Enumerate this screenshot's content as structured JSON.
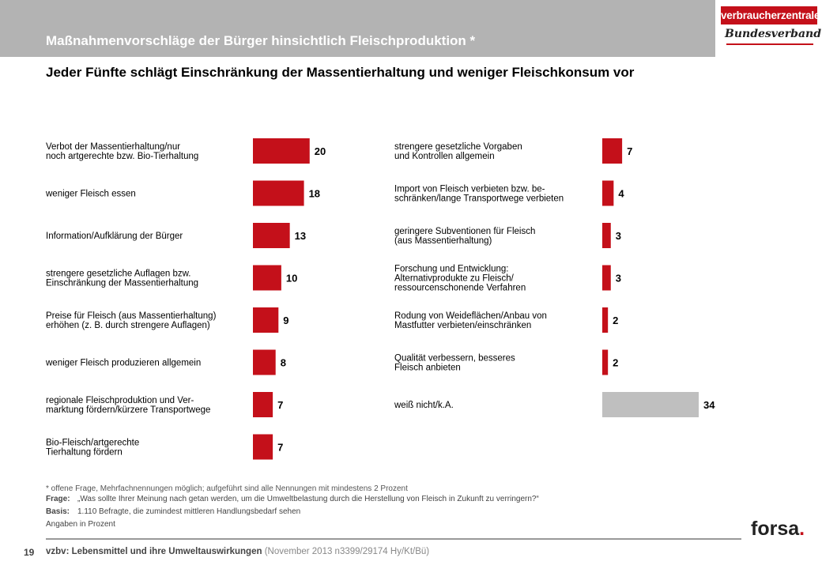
{
  "header": {
    "title": "Maßnahmenvorschläge der Bürger hinsichtlich Fleischproduktion *",
    "subtitle": "Jeder Fünfte schlägt Einschränkung der Massentierhaltung und weniger Fleischkonsum vor"
  },
  "logo": {
    "brand": "verbraucherzentrale",
    "script": "Bundesverband"
  },
  "colors": {
    "bar": "#c4101a",
    "bar_unknown": "#bfbfbf"
  },
  "chart_data": [
    {
      "type": "bar",
      "orientation": "horizontal",
      "categories": [
        "Verbot der Massentierhaltung/nur\nnoch artgerechte bzw. Bio-Tierhaltung",
        "weniger Fleisch essen",
        "Information/Aufklärung der Bürger",
        "strengere gesetzliche Auflagen bzw.\nEinschränkung der Massentierhaltung",
        "Preise für Fleisch (aus Massentierhaltung)\nerhöhen (z. B. durch strengere Auflagen)",
        "weniger Fleisch produzieren allgemein",
        "regionale Fleischproduktion und Ver-\nmarktung fördern/kürzere Transportwege",
        "Bio-Fleisch/artgerechte\nTierhaltung fördern"
      ],
      "values": [
        20,
        18,
        13,
        10,
        9,
        8,
        7,
        7
      ],
      "xlim": [
        0,
        34
      ]
    },
    {
      "type": "bar",
      "orientation": "horizontal",
      "categories": [
        "strengere gesetzliche Vorgaben\nund Kontrollen allgemein",
        "Import von Fleisch verbieten bzw. be-\nschränken/lange Transportwege verbieten",
        "geringere Subventionen für Fleisch\n(aus Massentierhaltung)",
        "Forschung und Entwicklung:\nAlternativprodukte zu Fleisch/\nressourcenschonende Verfahren",
        "Rodung von Weideflächen/Anbau von\nMastfutter verbieten/einschränken",
        "Qualität verbessern, besseres\nFleisch anbieten",
        "weiß nicht/k.A."
      ],
      "values": [
        7,
        4,
        3,
        3,
        2,
        2,
        34
      ],
      "xlim": [
        0,
        34
      ]
    }
  ],
  "footnotes": {
    "note": "* offene Frage, Mehrfachnennungen möglich; aufgeführt sind alle Nennungen mit mindestens 2 Prozent",
    "frage_key": "Frage:",
    "frage_text": "„Was sollte Ihrer Meinung nach getan werden, um die Umweltbelastung durch die Herstellung von Fleisch in Zukunft zu verringern?“",
    "basis_key": "Basis:",
    "basis_text": "1.110 Befragte, die zumindest mittleren Handlungsbedarf sehen",
    "angaben": "Angaben in Prozent"
  },
  "footer": {
    "page_number": "19",
    "source_bold": "vzbv: Lebensmittel und ihre Umweltauswirkungen",
    "source_light": "(November 2013  n3399/29174  Hy/Kt/Bü)",
    "brand": "forsa",
    "brand_dot": "."
  }
}
